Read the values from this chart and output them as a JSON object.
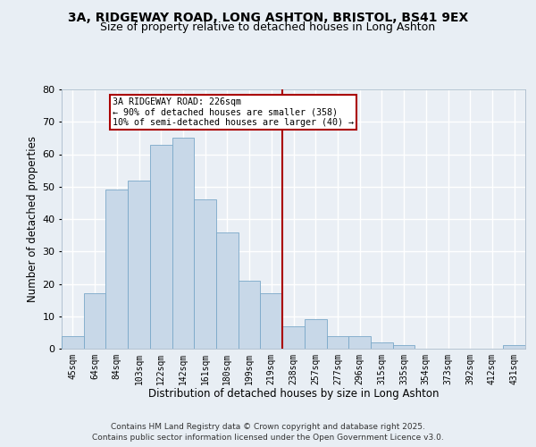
{
  "title1": "3A, RIDGEWAY ROAD, LONG ASHTON, BRISTOL, BS41 9EX",
  "title2": "Size of property relative to detached houses in Long Ashton",
  "xlabel": "Distribution of detached houses by size in Long Ashton",
  "ylabel": "Number of detached properties",
  "categories": [
    "45sqm",
    "64sqm",
    "84sqm",
    "103sqm",
    "122sqm",
    "142sqm",
    "161sqm",
    "180sqm",
    "199sqm",
    "219sqm",
    "238sqm",
    "257sqm",
    "277sqm",
    "296sqm",
    "315sqm",
    "335sqm",
    "354sqm",
    "373sqm",
    "392sqm",
    "412sqm",
    "431sqm"
  ],
  "values": [
    4,
    17,
    49,
    52,
    63,
    65,
    46,
    36,
    21,
    17,
    7,
    9,
    4,
    4,
    2,
    1,
    0,
    0,
    0,
    0,
    1
  ],
  "bar_color": "#c8d8e8",
  "bar_edge_color": "#7aa8c8",
  "vline_x": 9.5,
  "vline_color": "#aa0000",
  "annotation_text": "3A RIDGEWAY ROAD: 226sqm\n← 90% of detached houses are smaller (358)\n10% of semi-detached houses are larger (40) →",
  "annotation_box_color": "#ffffff",
  "annotation_box_edge": "#aa0000",
  "ylim": [
    0,
    80
  ],
  "yticks": [
    0,
    10,
    20,
    30,
    40,
    50,
    60,
    70,
    80
  ],
  "footer1": "Contains HM Land Registry data © Crown copyright and database right 2025.",
  "footer2": "Contains public sector information licensed under the Open Government Licence v3.0.",
  "bg_color": "#e8eef4",
  "plot_bg_color": "#eaeff5",
  "grid_color": "#ffffff",
  "title_fontsize": 10,
  "subtitle_fontsize": 9
}
